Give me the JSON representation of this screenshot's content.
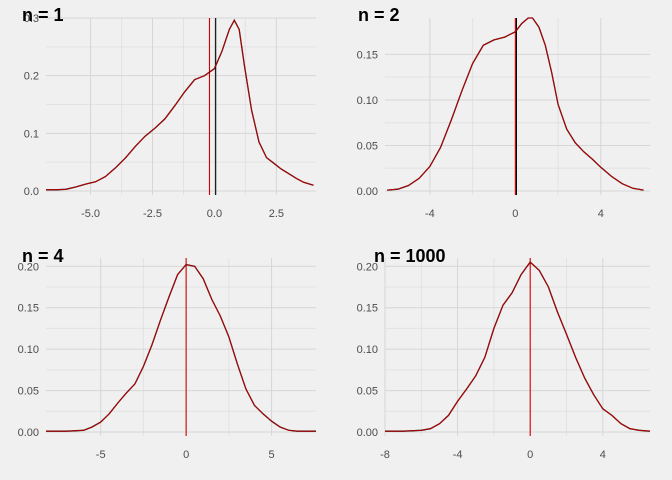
{
  "colors": {
    "background": "#f0f0f0",
    "grid": "#d6d6d6",
    "density": "#000000",
    "density_overlay": "#cc0000",
    "mean_line": "#d40000",
    "zero_line": "#000000"
  },
  "chart_data": [
    {
      "type": "line",
      "title": "n = 1",
      "xlim": [
        -6.8,
        4.1
      ],
      "ylim": [
        0,
        0.3
      ],
      "x_ticks": [
        -5.0,
        -2.5,
        0.0,
        2.5
      ],
      "x_tick_labels": [
        "-5.0",
        "-2.5",
        "0.0",
        "2.5"
      ],
      "y_ticks": [
        0.0,
        0.1,
        0.2,
        0.3
      ],
      "y_tick_labels": [
        "0.0",
        "0.1",
        "0.2",
        "0.3"
      ],
      "grid": true,
      "vlines": [
        {
          "x": -0.2,
          "color": "red"
        },
        {
          "x": 0.05,
          "color": "black"
        }
      ],
      "density": {
        "x": [
          -6.8,
          -6.4,
          -6.0,
          -5.6,
          -5.2,
          -4.8,
          -4.4,
          -4.0,
          -3.6,
          -3.2,
          -2.8,
          -2.4,
          -2.0,
          -1.6,
          -1.2,
          -0.8,
          -0.4,
          0.0,
          0.3,
          0.6,
          0.8,
          1.0,
          1.2,
          1.5,
          1.8,
          2.1,
          2.4,
          2.7,
          3.0,
          3.3,
          3.6,
          4.0
        ],
        "y": [
          0.002,
          0.002,
          0.003,
          0.007,
          0.012,
          0.016,
          0.025,
          0.04,
          0.057,
          0.077,
          0.095,
          0.109,
          0.125,
          0.148,
          0.172,
          0.193,
          0.2,
          0.212,
          0.242,
          0.28,
          0.296,
          0.28,
          0.22,
          0.14,
          0.085,
          0.058,
          0.048,
          0.038,
          0.03,
          0.022,
          0.015,
          0.01
        ]
      }
    },
    {
      "type": "line",
      "title": "n = 2",
      "xlim": [
        -6.1,
        6.3
      ],
      "ylim": [
        0,
        0.19
      ],
      "x_ticks": [
        -4,
        0,
        4
      ],
      "x_tick_labels": [
        "-4",
        "0",
        "4"
      ],
      "y_ticks": [
        0.0,
        0.05,
        0.1,
        0.15
      ],
      "y_tick_labels": [
        "0.00",
        "0.05",
        "0.10",
        "0.15"
      ],
      "grid": true,
      "vlines": [
        {
          "x": 0.0,
          "color": "red"
        },
        {
          "x": 0.05,
          "color": "black"
        }
      ],
      "density": {
        "x": [
          -6.0,
          -5.5,
          -5.0,
          -4.5,
          -4.0,
          -3.5,
          -3.0,
          -2.5,
          -2.0,
          -1.5,
          -1.0,
          -0.5,
          0.0,
          0.3,
          0.6,
          0.8,
          1.1,
          1.4,
          1.7,
          2.0,
          2.4,
          2.8,
          3.2,
          3.6,
          4.0,
          4.5,
          5.0,
          5.5,
          6.0
        ],
        "y": [
          0.001,
          0.002,
          0.006,
          0.014,
          0.027,
          0.048,
          0.078,
          0.11,
          0.14,
          0.16,
          0.166,
          0.169,
          0.175,
          0.184,
          0.19,
          0.19,
          0.18,
          0.16,
          0.13,
          0.095,
          0.068,
          0.053,
          0.043,
          0.035,
          0.026,
          0.016,
          0.008,
          0.003,
          0.001
        ]
      }
    },
    {
      "type": "line",
      "title": "n = 4",
      "xlim": [
        -8.2,
        7.6
      ],
      "ylim": [
        0,
        0.21
      ],
      "x_ticks": [
        -5,
        0,
        5
      ],
      "x_tick_labels": [
        "-5",
        "0",
        "5"
      ],
      "y_ticks": [
        0.0,
        0.05,
        0.1,
        0.15,
        0.2
      ],
      "y_tick_labels": [
        "0.00",
        "0.05",
        "0.10",
        "0.15",
        "0.20"
      ],
      "grid": true,
      "vlines": [
        {
          "x": 0.0,
          "color": "red"
        }
      ],
      "density": {
        "x": [
          -8.2,
          -7.0,
          -6.0,
          -5.5,
          -5.0,
          -4.5,
          -4.0,
          -3.5,
          -3.0,
          -2.5,
          -2.0,
          -1.5,
          -1.0,
          -0.5,
          0.0,
          0.5,
          1.0,
          1.5,
          2.0,
          2.5,
          3.0,
          3.5,
          4.0,
          4.5,
          5.0,
          5.5,
          6.0,
          6.5,
          7.0,
          7.6
        ],
        "y": [
          0.001,
          0.001,
          0.002,
          0.006,
          0.012,
          0.022,
          0.035,
          0.047,
          0.058,
          0.079,
          0.105,
          0.135,
          0.163,
          0.19,
          0.202,
          0.2,
          0.185,
          0.16,
          0.14,
          0.115,
          0.082,
          0.052,
          0.032,
          0.022,
          0.013,
          0.006,
          0.002,
          0.001,
          0.001,
          0.001
        ]
      }
    },
    {
      "type": "line",
      "title": "n = 1000",
      "xlim": [
        -8.0,
        6.6
      ],
      "ylim": [
        0,
        0.21
      ],
      "x_ticks": [
        -8,
        -4,
        0,
        4
      ],
      "x_tick_labels": [
        "-8",
        "-4",
        "0",
        "4"
      ],
      "y_ticks": [
        0.0,
        0.05,
        0.1,
        0.15,
        0.2
      ],
      "y_tick_labels": [
        "0.00",
        "0.05",
        "0.10",
        "0.15",
        "0.20"
      ],
      "grid": true,
      "vlines": [
        {
          "x": 0.0,
          "color": "red"
        }
      ],
      "density": {
        "x": [
          -8.0,
          -7.0,
          -6.0,
          -5.5,
          -5.0,
          -4.5,
          -4.0,
          -3.5,
          -3.0,
          -2.5,
          -2.0,
          -1.5,
          -1.0,
          -0.5,
          0.0,
          0.5,
          1.0,
          1.5,
          2.0,
          2.5,
          3.0,
          3.5,
          4.0,
          4.5,
          5.0,
          5.5,
          6.0,
          6.6
        ],
        "y": [
          0.001,
          0.001,
          0.002,
          0.004,
          0.01,
          0.02,
          0.037,
          0.052,
          0.068,
          0.09,
          0.125,
          0.153,
          0.168,
          0.19,
          0.205,
          0.195,
          0.175,
          0.145,
          0.118,
          0.09,
          0.065,
          0.045,
          0.028,
          0.02,
          0.01,
          0.004,
          0.002,
          0.001
        ]
      }
    }
  ]
}
